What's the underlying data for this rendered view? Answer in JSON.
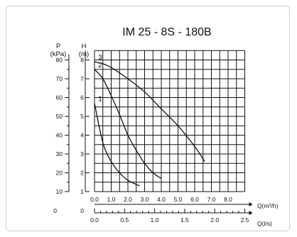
{
  "chart_data": {
    "type": "line",
    "title": "IM 25 - 8S - 180B",
    "left_axis_p": {
      "name": "P",
      "unit": "(kPa)",
      "ticks": [
        "80",
        "70",
        "60",
        "50",
        "40",
        "30",
        "20",
        "10",
        "0"
      ],
      "values": [
        80,
        70,
        60,
        50,
        40,
        30,
        20,
        10,
        0
      ]
    },
    "left_axis_h": {
      "name": "H",
      "unit": "(m)",
      "ticks": [
        "8",
        "7",
        "6",
        "5",
        "4",
        "3",
        "2",
        "1",
        "0"
      ],
      "values": [
        8,
        7,
        6,
        5,
        4,
        3,
        2,
        1,
        0
      ],
      "ylim": [
        1,
        8.5
      ]
    },
    "x_axis_q_m3h": {
      "label": "Q(m³/h)",
      "ticks": [
        "0.0",
        "1.0",
        "2.0",
        "3.0",
        "4.0",
        "5.0",
        "6.0",
        "7.0",
        "8.0"
      ],
      "values": [
        0,
        1,
        2,
        3,
        4,
        5,
        6,
        7,
        8
      ],
      "xlim": [
        0,
        9
      ]
    },
    "x_axis_q_ls": {
      "label": "Q(l/s)",
      "ticks": [
        "0.0",
        "0.5",
        "1.0",
        "1.5",
        "2.0",
        "2.5"
      ],
      "values": [
        0,
        0.5,
        1.0,
        1.5,
        2.0,
        2.5
      ]
    },
    "grid": true,
    "series": [
      {
        "name": "1",
        "x": [
          0.0,
          0.5,
          1.0,
          1.5,
          2.0,
          2.7
        ],
        "y": [
          5.7,
          3.6,
          2.6,
          2.0,
          1.6,
          1.3
        ]
      },
      {
        "name": "2",
        "x": [
          0.0,
          0.5,
          1.0,
          1.5,
          2.0,
          2.5,
          3.0,
          3.5,
          4.0
        ],
        "y": [
          7.5,
          7.0,
          6.1,
          5.1,
          4.0,
          3.2,
          2.5,
          2.0,
          1.7
        ]
      },
      {
        "name": "3",
        "x": [
          0.0,
          0.5,
          1.0,
          2.0,
          3.0,
          4.0,
          5.0,
          6.0,
          6.6
        ],
        "y": [
          7.9,
          7.8,
          7.6,
          7.0,
          6.3,
          5.4,
          4.5,
          3.4,
          2.6
        ]
      }
    ]
  }
}
